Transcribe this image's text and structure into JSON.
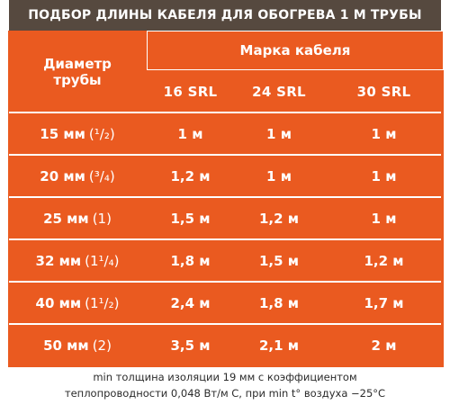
{
  "title": "ПОДБОР ДЛИНЫ КАБЕЛЯ ДЛЯ ОБОГРЕВА 1 М ТРУБЫ",
  "table": {
    "corner_line1": "Диаметр",
    "corner_line2": "трубы",
    "brand_header": "Марка кабеля",
    "models": [
      "16 SRL",
      "24 SRL",
      "30 SRL"
    ],
    "rows": [
      {
        "diameter": "15 мм",
        "inch": "(¹/₂)",
        "values": [
          "1 м",
          "1 м",
          "1 м"
        ]
      },
      {
        "diameter": "20 мм",
        "inch": "(³/₄)",
        "values": [
          "1,2 м",
          "1 м",
          "1 м"
        ]
      },
      {
        "diameter": "25 мм",
        "inch": "(1)",
        "values": [
          "1,5 м",
          "1,2 м",
          "1 м"
        ]
      },
      {
        "diameter": "32 мм",
        "inch": "(1¹/₄)",
        "values": [
          "1,8 м",
          "1,5 м",
          "1,2 м"
        ]
      },
      {
        "diameter": "40 мм",
        "inch": "(1¹/₂)",
        "values": [
          "2,4 м",
          "1,8 м",
          "1,7 м"
        ]
      },
      {
        "diameter": "50 мм",
        "inch": "(2)",
        "values": [
          "3,5 м",
          "2,1 м",
          "2 м"
        ]
      }
    ]
  },
  "footnote": {
    "line1": "min толщина изоляции 19 мм с коэффициентом",
    "line2": "теплопроводности 0,048 Вт/м С, при min t° воздуха −25°C"
  }
}
